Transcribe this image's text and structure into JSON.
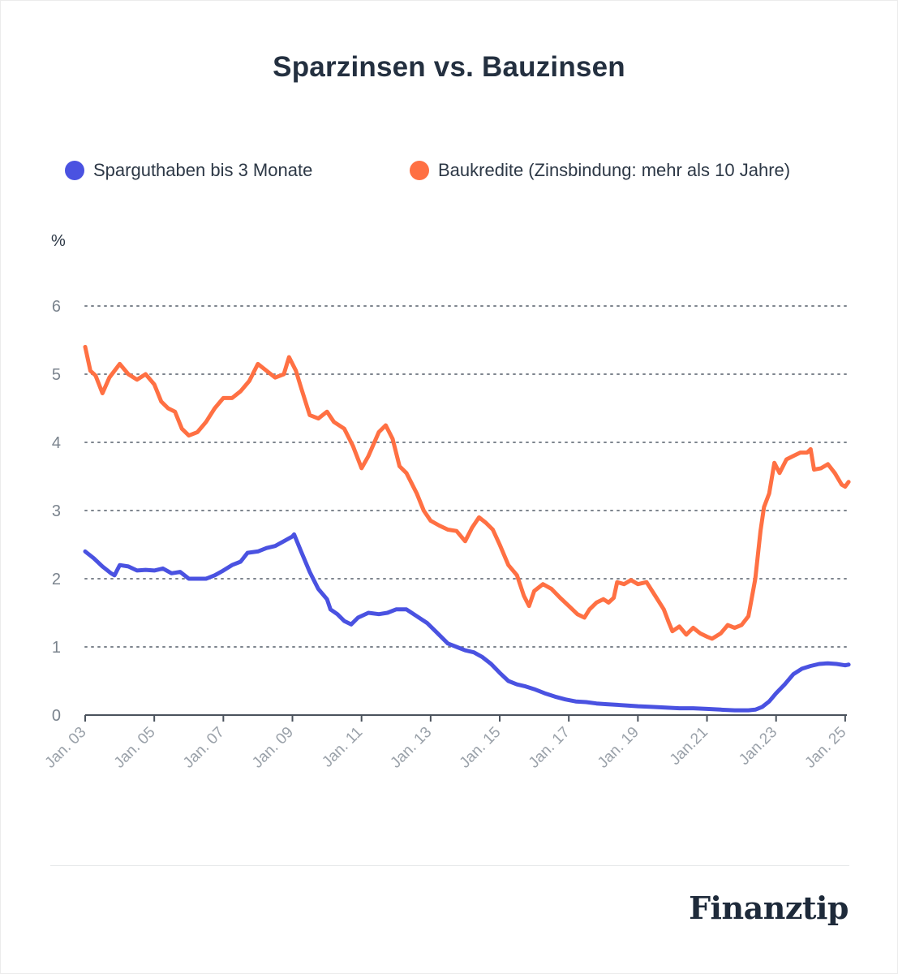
{
  "chart_data": {
    "type": "line",
    "title": "Sparzinsen vs. Bauzinsen",
    "ylabel": "%",
    "xlabel": "",
    "ylim": [
      0,
      6
    ],
    "yticks": [
      0,
      1,
      2,
      3,
      4,
      5,
      6
    ],
    "xlim": [
      2003,
      2025.1
    ],
    "xticks": [
      {
        "value": 2003,
        "label": "Jan. 03"
      },
      {
        "value": 2005,
        "label": "Jan. 05"
      },
      {
        "value": 2007,
        "label": "Jan. 07"
      },
      {
        "value": 2009,
        "label": "Jan. 09"
      },
      {
        "value": 2011,
        "label": "Jan. 11"
      },
      {
        "value": 2013,
        "label": "Jan. 13"
      },
      {
        "value": 2015,
        "label": "Jan. 15"
      },
      {
        "value": 2017,
        "label": "Jan. 17"
      },
      {
        "value": 2019,
        "label": "Jan. 19"
      },
      {
        "value": 2021,
        "label": "Jan.21"
      },
      {
        "value": 2023,
        "label": "Jan.23"
      },
      {
        "value": 2025,
        "label": "Jan. 25"
      }
    ],
    "grid": "horizontal-dotted",
    "legend_position": "top",
    "series": [
      {
        "name": "Sparguthaben bis 3 Monate",
        "color": "#4a52e1",
        "points": [
          [
            2003.0,
            2.4
          ],
          [
            2003.25,
            2.3
          ],
          [
            2003.5,
            2.18
          ],
          [
            2003.75,
            2.08
          ],
          [
            2003.85,
            2.05
          ],
          [
            2004.0,
            2.2
          ],
          [
            2004.25,
            2.18
          ],
          [
            2004.5,
            2.12
          ],
          [
            2004.75,
            2.13
          ],
          [
            2005.0,
            2.12
          ],
          [
            2005.25,
            2.15
          ],
          [
            2005.5,
            2.08
          ],
          [
            2005.75,
            2.1
          ],
          [
            2006.0,
            2.0
          ],
          [
            2006.25,
            2.0
          ],
          [
            2006.5,
            2.0
          ],
          [
            2006.75,
            2.05
          ],
          [
            2007.0,
            2.12
          ],
          [
            2007.25,
            2.2
          ],
          [
            2007.5,
            2.25
          ],
          [
            2007.7,
            2.38
          ],
          [
            2008.0,
            2.4
          ],
          [
            2008.25,
            2.45
          ],
          [
            2008.5,
            2.48
          ],
          [
            2008.75,
            2.55
          ],
          [
            2009.0,
            2.62
          ],
          [
            2009.05,
            2.65
          ],
          [
            2009.25,
            2.4
          ],
          [
            2009.5,
            2.1
          ],
          [
            2009.75,
            1.85
          ],
          [
            2010.0,
            1.7
          ],
          [
            2010.1,
            1.55
          ],
          [
            2010.3,
            1.48
          ],
          [
            2010.5,
            1.38
          ],
          [
            2010.7,
            1.33
          ],
          [
            2010.9,
            1.43
          ],
          [
            2011.2,
            1.5
          ],
          [
            2011.5,
            1.48
          ],
          [
            2011.75,
            1.5
          ],
          [
            2012.0,
            1.55
          ],
          [
            2012.3,
            1.55
          ],
          [
            2012.6,
            1.45
          ],
          [
            2012.9,
            1.35
          ],
          [
            2013.2,
            1.2
          ],
          [
            2013.5,
            1.05
          ],
          [
            2013.75,
            1.0
          ],
          [
            2014.0,
            0.95
          ],
          [
            2014.25,
            0.92
          ],
          [
            2014.5,
            0.85
          ],
          [
            2014.75,
            0.75
          ],
          [
            2015.0,
            0.62
          ],
          [
            2015.25,
            0.5
          ],
          [
            2015.5,
            0.45
          ],
          [
            2015.75,
            0.42
          ],
          [
            2016.0,
            0.38
          ],
          [
            2016.3,
            0.32
          ],
          [
            2016.6,
            0.27
          ],
          [
            2016.9,
            0.23
          ],
          [
            2017.2,
            0.2
          ],
          [
            2017.5,
            0.19
          ],
          [
            2017.8,
            0.17
          ],
          [
            2018.1,
            0.16
          ],
          [
            2018.4,
            0.15
          ],
          [
            2018.7,
            0.14
          ],
          [
            2019.0,
            0.13
          ],
          [
            2019.4,
            0.12
          ],
          [
            2019.8,
            0.11
          ],
          [
            2020.2,
            0.1
          ],
          [
            2020.6,
            0.1
          ],
          [
            2021.0,
            0.09
          ],
          [
            2021.4,
            0.08
          ],
          [
            2021.8,
            0.07
          ],
          [
            2022.2,
            0.07
          ],
          [
            2022.4,
            0.08
          ],
          [
            2022.6,
            0.12
          ],
          [
            2022.8,
            0.2
          ],
          [
            2023.0,
            0.32
          ],
          [
            2023.25,
            0.45
          ],
          [
            2023.5,
            0.6
          ],
          [
            2023.75,
            0.68
          ],
          [
            2024.0,
            0.72
          ],
          [
            2024.25,
            0.75
          ],
          [
            2024.5,
            0.76
          ],
          [
            2024.75,
            0.75
          ],
          [
            2025.0,
            0.73
          ],
          [
            2025.1,
            0.74
          ]
        ]
      },
      {
        "name": "Baukredite (Zinsbindung: mehr als 10 Jahre)",
        "color": "#ff7043",
        "points": [
          [
            2003.0,
            5.4
          ],
          [
            2003.15,
            5.05
          ],
          [
            2003.3,
            4.98
          ],
          [
            2003.5,
            4.72
          ],
          [
            2003.7,
            4.95
          ],
          [
            2004.0,
            5.15
          ],
          [
            2004.25,
            5.0
          ],
          [
            2004.5,
            4.92
          ],
          [
            2004.75,
            5.0
          ],
          [
            2005.0,
            4.85
          ],
          [
            2005.2,
            4.6
          ],
          [
            2005.4,
            4.5
          ],
          [
            2005.6,
            4.45
          ],
          [
            2005.8,
            4.2
          ],
          [
            2006.0,
            4.1
          ],
          [
            2006.25,
            4.15
          ],
          [
            2006.5,
            4.3
          ],
          [
            2006.75,
            4.5
          ],
          [
            2007.0,
            4.65
          ],
          [
            2007.25,
            4.65
          ],
          [
            2007.5,
            4.75
          ],
          [
            2007.75,
            4.9
          ],
          [
            2008.0,
            5.15
          ],
          [
            2008.25,
            5.05
          ],
          [
            2008.5,
            4.95
          ],
          [
            2008.75,
            5.0
          ],
          [
            2008.9,
            5.25
          ],
          [
            2009.1,
            5.05
          ],
          [
            2009.25,
            4.8
          ],
          [
            2009.5,
            4.4
          ],
          [
            2009.75,
            4.35
          ],
          [
            2010.0,
            4.45
          ],
          [
            2010.2,
            4.3
          ],
          [
            2010.5,
            4.2
          ],
          [
            2010.75,
            3.95
          ],
          [
            2011.0,
            3.62
          ],
          [
            2011.2,
            3.8
          ],
          [
            2011.5,
            4.15
          ],
          [
            2011.7,
            4.25
          ],
          [
            2011.9,
            4.05
          ],
          [
            2012.1,
            3.65
          ],
          [
            2012.3,
            3.55
          ],
          [
            2012.6,
            3.25
          ],
          [
            2012.8,
            3.0
          ],
          [
            2013.0,
            2.85
          ],
          [
            2013.25,
            2.78
          ],
          [
            2013.5,
            2.72
          ],
          [
            2013.75,
            2.7
          ],
          [
            2014.0,
            2.55
          ],
          [
            2014.2,
            2.75
          ],
          [
            2014.4,
            2.9
          ],
          [
            2014.6,
            2.82
          ],
          [
            2014.8,
            2.72
          ],
          [
            2015.0,
            2.5
          ],
          [
            2015.25,
            2.2
          ],
          [
            2015.5,
            2.05
          ],
          [
            2015.7,
            1.75
          ],
          [
            2015.85,
            1.6
          ],
          [
            2016.0,
            1.82
          ],
          [
            2016.25,
            1.92
          ],
          [
            2016.5,
            1.85
          ],
          [
            2016.75,
            1.72
          ],
          [
            2017.0,
            1.6
          ],
          [
            2017.25,
            1.48
          ],
          [
            2017.45,
            1.43
          ],
          [
            2017.6,
            1.55
          ],
          [
            2017.8,
            1.65
          ],
          [
            2018.0,
            1.7
          ],
          [
            2018.15,
            1.65
          ],
          [
            2018.3,
            1.72
          ],
          [
            2018.4,
            1.95
          ],
          [
            2018.6,
            1.92
          ],
          [
            2018.8,
            1.98
          ],
          [
            2019.0,
            1.92
          ],
          [
            2019.25,
            1.95
          ],
          [
            2019.5,
            1.75
          ],
          [
            2019.75,
            1.55
          ],
          [
            2019.9,
            1.35
          ],
          [
            2020.0,
            1.23
          ],
          [
            2020.2,
            1.3
          ],
          [
            2020.4,
            1.18
          ],
          [
            2020.6,
            1.28
          ],
          [
            2020.8,
            1.2
          ],
          [
            2021.0,
            1.15
          ],
          [
            2021.15,
            1.12
          ],
          [
            2021.4,
            1.2
          ],
          [
            2021.6,
            1.32
          ],
          [
            2021.8,
            1.28
          ],
          [
            2022.0,
            1.32
          ],
          [
            2022.2,
            1.45
          ],
          [
            2022.4,
            2.0
          ],
          [
            2022.55,
            2.7
          ],
          [
            2022.65,
            3.05
          ],
          [
            2022.8,
            3.25
          ],
          [
            2022.95,
            3.7
          ],
          [
            2023.1,
            3.55
          ],
          [
            2023.3,
            3.75
          ],
          [
            2023.5,
            3.8
          ],
          [
            2023.7,
            3.85
          ],
          [
            2023.9,
            3.85
          ],
          [
            2024.0,
            3.9
          ],
          [
            2024.1,
            3.6
          ],
          [
            2024.3,
            3.62
          ],
          [
            2024.5,
            3.68
          ],
          [
            2024.7,
            3.55
          ],
          [
            2024.9,
            3.38
          ],
          [
            2025.0,
            3.35
          ],
          [
            2025.1,
            3.42
          ]
        ]
      }
    ]
  },
  "brand": {
    "logo_text": "Finanztip"
  }
}
